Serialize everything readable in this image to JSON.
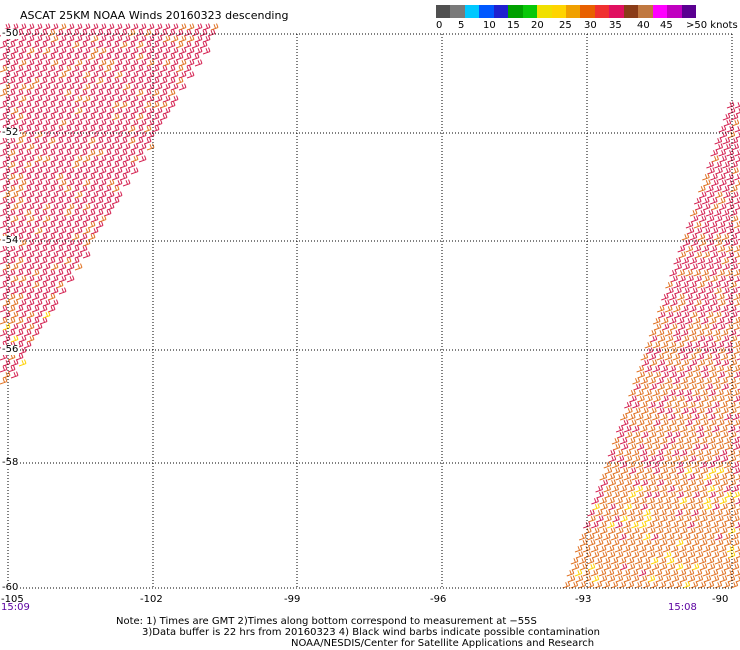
{
  "title": "ASCAT 25KM NOAA Winds 20160323 descending",
  "colors": {
    "scale": [
      "#505050",
      "#7a7a7a",
      "#00c8ff",
      "#0058ff",
      "#2020d0",
      "#00a000",
      "#08c808",
      "#f0e000",
      "#ffd400",
      "#f0a000",
      "#e86000",
      "#f03030",
      "#e01060",
      "#8a3c18",
      "#c07840",
      "#ff00ff",
      "#c000c0",
      "#5a0090"
    ],
    "time_label": "#5a00a0",
    "barbs_red": "#d42050",
    "barbs_orange": "#e07020",
    "barbs_yellow": "#ffd000"
  },
  "color_scale": {
    "ticks": [
      "0",
      "5",
      "10",
      "15",
      "20",
      "25",
      "30",
      "35",
      "40",
      "45",
      ">50 knots"
    ]
  },
  "map": {
    "latitudes": [
      "-50",
      "-52",
      "-54",
      "-56",
      "-58",
      "-60"
    ],
    "longitudes": [
      "-105",
      "-102",
      "-99",
      "-96",
      "-93",
      "-90"
    ],
    "times": [
      "15:09",
      "15:08"
    ]
  },
  "notes": {
    "line1": "Note: 1) Times are GMT 2)Times along bottom correspond to measurement at −55S",
    "line2": "3)Data buffer is 22 hrs from 20160323 4) Black wind barbs indicate possible contamination",
    "line3": "NOAA/NESDIS/Center for Satellite Applications and Research"
  }
}
